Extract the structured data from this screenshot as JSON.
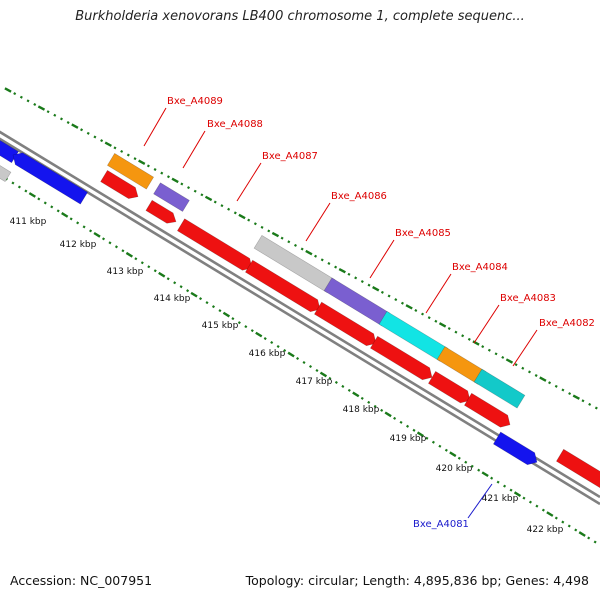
{
  "title": "Burkholderia xenovorans LB400 chromosome 1, complete sequenc...",
  "footer": {
    "accession": "Accession: NC_007951",
    "summary": "Topology: circular; Length: 4,895,836 bp; Genes: 4,498"
  },
  "colors": {
    "red": "#ee1111",
    "orange": "#f5960f",
    "purple": "#7a5fd0",
    "gray": "#c8c8c8",
    "cyan": "#12e4e4",
    "teal": "#13c9c9",
    "blue": "#1414ee",
    "tick_green": "#1a7a1a",
    "backbone": "#808080",
    "label_red": "#dd0000",
    "label_blue": "#1a1acc"
  },
  "kbp_ticks": [
    "411 kbp",
    "412 kbp",
    "413 kbp",
    "414 kbp",
    "415 kbp",
    "416 kbp",
    "417 kbp",
    "418 kbp",
    "419 kbp",
    "420 kbp",
    "421 kbp",
    "422 kbp"
  ],
  "gene_labels": [
    {
      "id": "Bxe_A4089",
      "color": "label_red"
    },
    {
      "id": "Bxe_A4088",
      "color": "label_red"
    },
    {
      "id": "Bxe_A4087",
      "color": "label_red"
    },
    {
      "id": "Bxe_A4086",
      "color": "label_red"
    },
    {
      "id": "Bxe_A4085",
      "color": "label_red"
    },
    {
      "id": "Bxe_A4084",
      "color": "label_red"
    },
    {
      "id": "Bxe_A4083",
      "color": "label_red"
    },
    {
      "id": "Bxe_A4082",
      "color": "label_red"
    },
    {
      "id": "Bxe_A4081",
      "color": "label_blue"
    }
  ]
}
